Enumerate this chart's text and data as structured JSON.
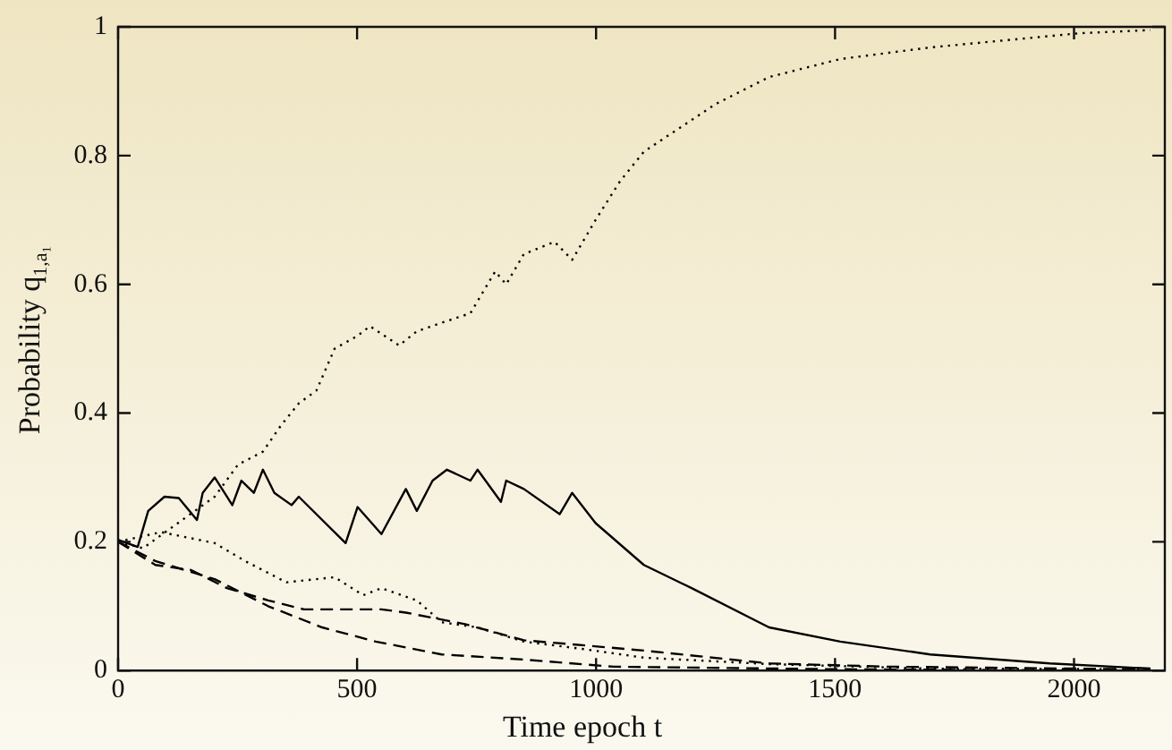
{
  "chart_data": {
    "type": "line",
    "xlabel": "Time epoch t",
    "ylabel": "Probability q$_{1,a₁}$",
    "xlim": [
      0,
      2190
    ],
    "ylim": [
      0,
      1
    ],
    "xticks": [
      0,
      500,
      1000,
      1500,
      2000
    ],
    "yticks": [
      0,
      0.2,
      0.4,
      0.6,
      0.8,
      1
    ],
    "grid": false,
    "legend": false,
    "marker": "none",
    "series": [
      {
        "color": "#000000",
        "line_style": "dotted",
        "x": [
          0,
          52,
          127,
          202,
          251,
          303,
          340,
          378,
          415,
          453,
          501,
          527,
          588,
          625,
          700,
          737,
          789,
          812,
          849,
          913,
          950,
          999,
          1050,
          1100,
          1175,
          1250,
          1362,
          1511,
          1699,
          2010,
          2160
        ],
        "values": [
          0.2,
          0.19,
          0.23,
          0.27,
          0.32,
          0.34,
          0.38,
          0.415,
          0.435,
          0.5,
          0.52,
          0.535,
          0.505,
          0.527,
          0.546,
          0.555,
          0.62,
          0.6,
          0.647,
          0.666,
          0.638,
          0.7,
          0.76,
          0.806,
          0.843,
          0.88,
          0.922,
          0.95,
          0.968,
          0.99,
          0.995
        ]
      },
      {
        "color": "#000000",
        "line_style": "solid",
        "x": [
          0,
          41,
          63,
          97,
          127,
          165,
          177,
          202,
          239,
          258,
          284,
          303,
          327,
          363,
          378,
          476,
          501,
          551,
          602,
          625,
          658,
          688,
          737,
          752,
          801,
          812,
          849,
          924,
          950,
          999,
          1100,
          1200,
          1362,
          1511,
          1699,
          1949,
          2160
        ],
        "values": [
          0.203,
          0.192,
          0.248,
          0.27,
          0.268,
          0.234,
          0.276,
          0.3,
          0.257,
          0.295,
          0.276,
          0.312,
          0.276,
          0.257,
          0.27,
          0.198,
          0.254,
          0.212,
          0.282,
          0.248,
          0.295,
          0.312,
          0.295,
          0.312,
          0.262,
          0.295,
          0.282,
          0.243,
          0.276,
          0.229,
          0.164,
          0.128,
          0.067,
          0.045,
          0.025,
          0.011,
          0.003
        ]
      },
      {
        "color": "#000000",
        "line_style": "dotted",
        "x": [
          0,
          90,
          202,
          266,
          352,
          453,
          513,
          551,
          625,
          677,
          752,
          849,
          977,
          1100,
          1362,
          1700,
          2160
        ],
        "values": [
          0.2,
          0.215,
          0.198,
          0.17,
          0.137,
          0.145,
          0.117,
          0.128,
          0.109,
          0.075,
          0.067,
          0.045,
          0.033,
          0.02,
          0.01,
          0.003,
          0.002
        ]
      },
      {
        "color": "#000000",
        "line_style": "dashed",
        "x": [
          0,
          78,
          153,
          228,
          314,
          389,
          476,
          551,
          602,
          726,
          849,
          977,
          1100,
          1362,
          1612,
          2130
        ],
        "values": [
          0.2,
          0.164,
          0.156,
          0.128,
          0.109,
          0.095,
          0.095,
          0.095,
          0.09,
          0.072,
          0.047,
          0.039,
          0.031,
          0.011,
          0.006,
          0.002
        ]
      },
      {
        "color": "#000000",
        "line_style": "dashed",
        "x": [
          0,
          78,
          202,
          314,
          427,
          539,
          677,
          849,
          1036,
          1500,
          2090
        ],
        "values": [
          0.2,
          0.17,
          0.142,
          0.1,
          0.067,
          0.045,
          0.025,
          0.017,
          0.006,
          0.002,
          0
        ]
      }
    ]
  }
}
